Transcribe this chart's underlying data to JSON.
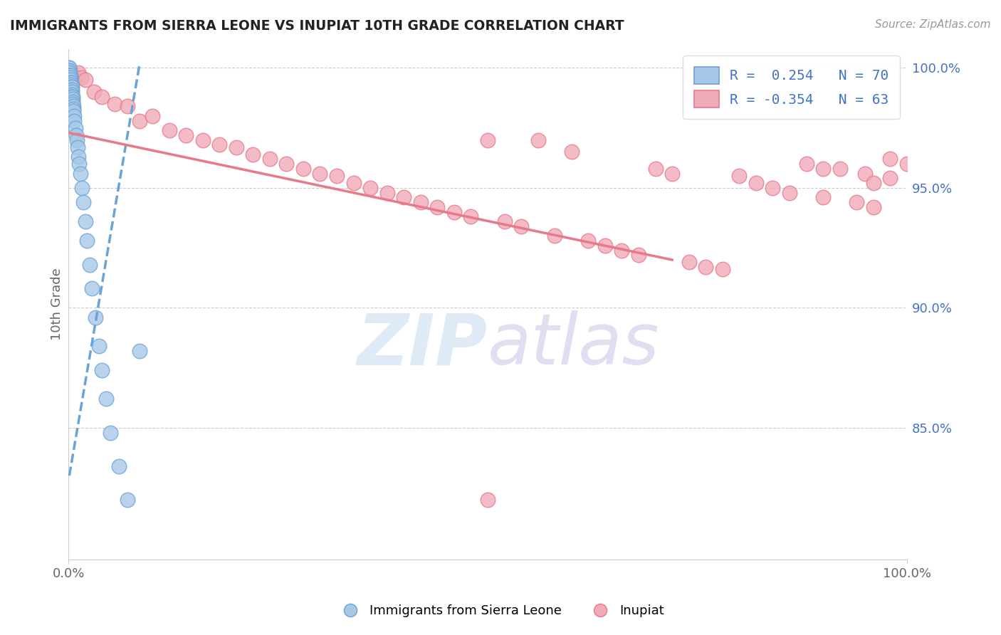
{
  "title": "IMMIGRANTS FROM SIERRA LEONE VS INUPIAT 10TH GRADE CORRELATION CHART",
  "source_text": "Source: ZipAtlas.com",
  "ylabel": "10th Grade",
  "xlim": [
    0.0,
    1.0
  ],
  "ylim": [
    0.795,
    1.008
  ],
  "x_ticks": [
    0.0,
    1.0
  ],
  "x_tick_labels": [
    "0.0%",
    "100.0%"
  ],
  "y_ticks": [
    0.85,
    0.9,
    0.95,
    1.0
  ],
  "y_tick_labels": [
    "85.0%",
    "90.0%",
    "95.0%",
    "100.0%"
  ],
  "watermark_text": "ZIPatlas",
  "blue_color": "#6aa3d5",
  "blue_fill": "#a8c8e8",
  "pink_color": "#e8788a",
  "pink_fill": "#f0aab8",
  "grid_color": "#cccccc",
  "bg_color": "#ffffff",
  "legend_label_blue": "R =  0.254   N = 70",
  "legend_label_pink": "R = -0.354   N = 63",
  "bottom_legend_blue": "Immigrants from Sierra Leone",
  "bottom_legend_pink": "Inupiat",
  "blue_scatter_x": [
    0.001,
    0.001,
    0.001,
    0.001,
    0.001,
    0.001,
    0.001,
    0.001,
    0.001,
    0.001,
    0.001,
    0.001,
    0.001,
    0.002,
    0.002,
    0.002,
    0.002,
    0.002,
    0.002,
    0.002,
    0.002,
    0.002,
    0.002,
    0.002,
    0.002,
    0.002,
    0.003,
    0.003,
    0.003,
    0.003,
    0.003,
    0.003,
    0.003,
    0.003,
    0.003,
    0.004,
    0.004,
    0.004,
    0.004,
    0.004,
    0.005,
    0.005,
    0.005,
    0.005,
    0.006,
    0.006,
    0.006,
    0.007,
    0.007,
    0.008,
    0.009,
    0.01,
    0.011,
    0.012,
    0.013,
    0.014,
    0.016,
    0.018,
    0.02,
    0.022,
    0.025,
    0.028,
    0.032,
    0.036,
    0.04,
    0.045,
    0.05,
    0.06,
    0.07,
    0.085
  ],
  "blue_scatter_y": [
    1.0,
    1.0,
    0.999,
    0.998,
    0.997,
    0.997,
    0.996,
    0.996,
    0.995,
    0.995,
    0.994,
    0.993,
    0.992,
    0.997,
    0.996,
    0.995,
    0.994,
    0.993,
    0.992,
    0.991,
    0.99,
    0.989,
    0.988,
    0.987,
    0.986,
    0.985,
    0.994,
    0.993,
    0.992,
    0.991,
    0.99,
    0.989,
    0.988,
    0.987,
    0.986,
    0.992,
    0.991,
    0.99,
    0.989,
    0.988,
    0.988,
    0.987,
    0.986,
    0.985,
    0.984,
    0.983,
    0.982,
    0.98,
    0.978,
    0.975,
    0.972,
    0.97,
    0.967,
    0.963,
    0.96,
    0.956,
    0.95,
    0.944,
    0.936,
    0.928,
    0.918,
    0.908,
    0.896,
    0.884,
    0.874,
    0.862,
    0.848,
    0.834,
    0.82,
    0.882
  ],
  "pink_scatter_x": [
    0.001,
    0.003,
    0.005,
    0.008,
    0.012,
    0.015,
    0.02,
    0.03,
    0.04,
    0.055,
    0.07,
    0.085,
    0.1,
    0.12,
    0.14,
    0.16,
    0.18,
    0.2,
    0.22,
    0.24,
    0.26,
    0.28,
    0.3,
    0.32,
    0.34,
    0.36,
    0.38,
    0.4,
    0.42,
    0.44,
    0.46,
    0.48,
    0.5,
    0.52,
    0.54,
    0.56,
    0.58,
    0.6,
    0.62,
    0.64,
    0.66,
    0.68,
    0.7,
    0.72,
    0.74,
    0.76,
    0.78,
    0.8,
    0.82,
    0.84,
    0.86,
    0.88,
    0.9,
    0.92,
    0.94,
    0.96,
    0.98,
    1.0,
    0.9,
    0.95,
    0.98,
    0.96,
    0.5
  ],
  "pink_scatter_y": [
    0.99,
    0.998,
    0.997,
    0.996,
    0.998,
    0.996,
    0.995,
    0.99,
    0.988,
    0.985,
    0.984,
    0.978,
    0.98,
    0.974,
    0.972,
    0.97,
    0.968,
    0.967,
    0.964,
    0.962,
    0.96,
    0.958,
    0.956,
    0.955,
    0.952,
    0.95,
    0.948,
    0.946,
    0.944,
    0.942,
    0.94,
    0.938,
    0.97,
    0.936,
    0.934,
    0.97,
    0.93,
    0.965,
    0.928,
    0.926,
    0.924,
    0.922,
    0.958,
    0.956,
    0.919,
    0.917,
    0.916,
    0.955,
    0.952,
    0.95,
    0.948,
    0.96,
    0.946,
    0.958,
    0.944,
    0.942,
    0.962,
    0.96,
    0.958,
    0.956,
    0.954,
    0.952,
    0.82
  ],
  "blue_line_x0": 0.001,
  "blue_line_x1": 0.085,
  "blue_line_y0": 0.83,
  "blue_line_y1": 1.002,
  "pink_line_x0": 0.0,
  "pink_line_x1": 0.72,
  "pink_line_y0": 0.973,
  "pink_line_y1": 0.92
}
